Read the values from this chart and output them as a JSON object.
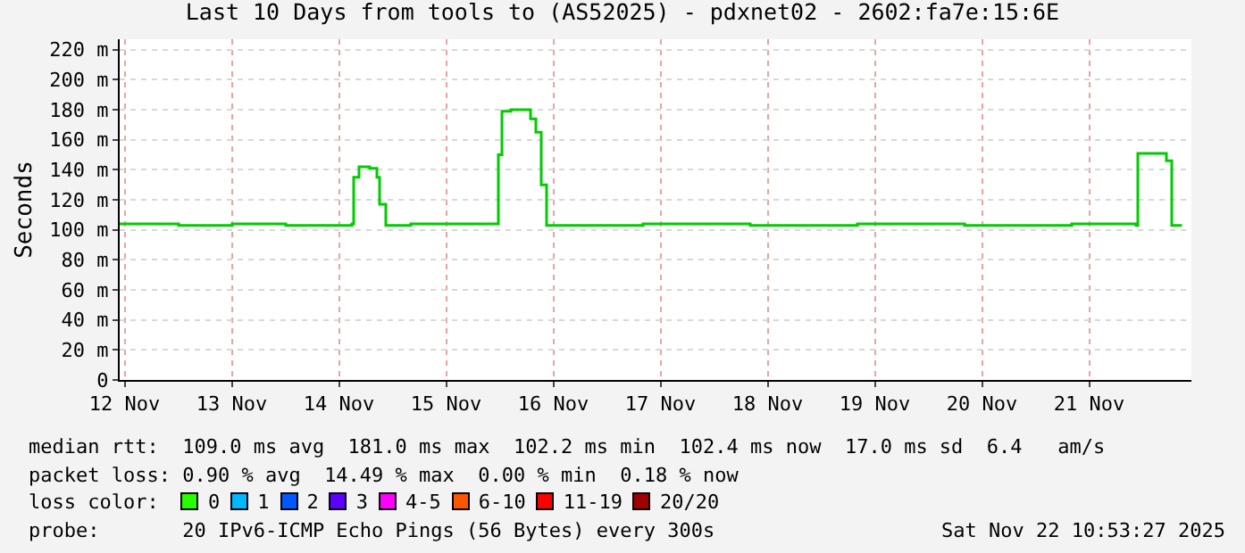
{
  "chart_data": {
    "type": "step",
    "title": "Last 10 Days from tools to (AS52025) - pdxnet02 - 2602:fa7e:15:6E",
    "ylabel": "Seconds",
    "x": [
      "2025-11-12T10:53",
      "2025-11-13T00:05",
      "2025-11-13T12:05",
      "2025-11-14T00:05",
      "2025-11-14T14:53",
      "2025-11-14T15:17",
      "2025-11-14T16:29",
      "2025-11-14T18:53",
      "2025-11-14T20:29",
      "2025-11-14T21:05",
      "2025-11-14T22:29",
      "2025-11-15T04:05",
      "2025-11-15T16:05",
      "2025-11-15T23:17",
      "2025-11-15T23:41",
      "2025-11-16T00:29",
      "2025-11-16T02:29",
      "2025-11-16T04:53",
      "2025-11-16T06:53",
      "2025-11-16T08:05",
      "2025-11-16T09:17",
      "2025-11-16T10:29",
      "2025-11-17T08:05",
      "2025-11-18T08:05",
      "2025-11-19T08:05",
      "2025-11-20T08:05",
      "2025-11-21T08:05",
      "2025-11-21T22:29",
      "2025-11-21T22:53",
      "2025-11-22T04:05",
      "2025-11-22T05:17",
      "2025-11-22T06:29",
      "2025-11-22T08:29"
    ],
    "series": [
      {
        "color": "#00cc00",
        "values": [
          104,
          103,
          104,
          103,
          104,
          135,
          142,
          141,
          135,
          117,
          103,
          104,
          104,
          104,
          150,
          179,
          180,
          180,
          174,
          165,
          130,
          103,
          104,
          103,
          104,
          103,
          104,
          103,
          151,
          151,
          146,
          103,
          102
        ]
      }
    ],
    "xlim": [
      "2025-11-12T10:53",
      "2025-11-22T10:53"
    ],
    "xticks": [
      {
        "value": "2025-11-12T12:00",
        "label": "12 Nov"
      },
      {
        "value": "2025-11-13T12:00",
        "label": "13 Nov"
      },
      {
        "value": "2025-11-14T12:00",
        "label": "14 Nov"
      },
      {
        "value": "2025-11-15T12:00",
        "label": "15 Nov"
      },
      {
        "value": "2025-11-16T12:00",
        "label": "16 Nov"
      },
      {
        "value": "2025-11-17T12:00",
        "label": "17 Nov"
      },
      {
        "value": "2025-11-18T12:00",
        "label": "18 Nov"
      },
      {
        "value": "2025-11-19T12:00",
        "label": "19 Nov"
      },
      {
        "value": "2025-11-20T12:00",
        "label": "20 Nov"
      },
      {
        "value": "2025-11-21T12:00",
        "label": "21 Nov"
      }
    ],
    "ylim": [
      0,
      227
    ],
    "yticks": [
      0,
      {
        "value": 20,
        "label": "20 m"
      },
      {
        "value": 40,
        "label": "40 m"
      },
      {
        "value": 60,
        "label": "60 m"
      },
      {
        "value": 80,
        "label": "80 m"
      },
      {
        "value": 100,
        "label": "100 m"
      },
      {
        "value": 120,
        "label": "120 m"
      },
      {
        "value": 140,
        "label": "140 m"
      },
      {
        "value": 160,
        "label": "160 m"
      },
      {
        "value": 180,
        "label": "180 m"
      },
      {
        "value": 200,
        "label": "200 m"
      },
      {
        "value": 220,
        "label": "220 m"
      }
    ],
    "grid": true,
    "annotations": [
      "median rtt:  109.0 ms avg  181.0 ms max  102.2 ms min  102.4 ms now  17.0 ms sd  6.4   am/s",
      "packet loss: 0.90 % avg  14.49 % max  0.00 % min  0.18 % now",
      "loss color:  0  1  2  3  4-5  6-10  11-19  20/20",
      "probe:       20 IPv6-ICMP Echo Pings (56 Bytes) every 300s",
      "Sat Nov 22 10:53:27 2025"
    ]
  }
}
